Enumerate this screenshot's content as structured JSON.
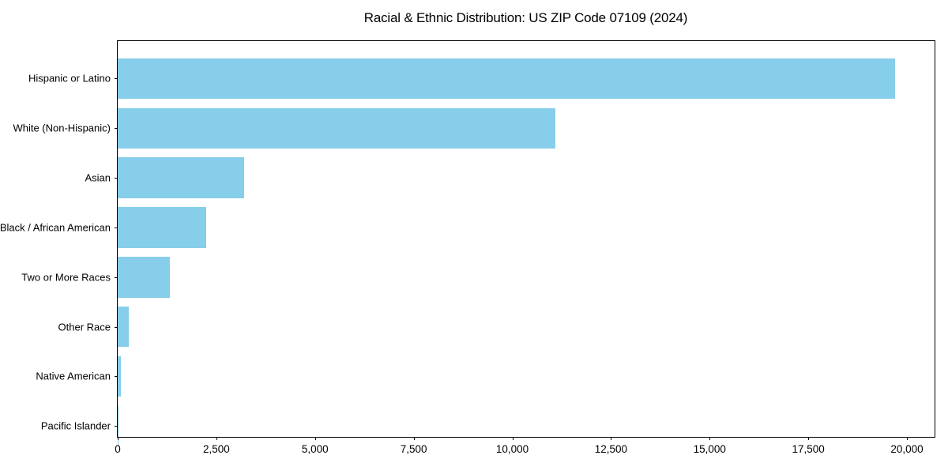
{
  "chart_data": {
    "type": "bar",
    "orientation": "horizontal",
    "title": "Racial & Ethnic Distribution: US ZIP Code 07109 (2024)",
    "categories": [
      "Hispanic or Latino",
      "White (Non-Hispanic)",
      "Asian",
      "Black / African American",
      "Two or More Races",
      "Other Race",
      "Native American",
      "Pacific Islander"
    ],
    "values": [
      19700,
      11100,
      3200,
      2250,
      1320,
      280,
      85,
      10
    ],
    "xlabel": "",
    "ylabel": "",
    "xlim": [
      0,
      20700
    ],
    "x_ticks": [
      0,
      2500,
      5000,
      7500,
      10000,
      12500,
      15000,
      17500,
      20000
    ],
    "x_tick_labels": [
      "0",
      "2,500",
      "5,000",
      "7,500",
      "10,000",
      "12,500",
      "15,000",
      "17,500",
      "20,000"
    ],
    "grid": false,
    "legend": false,
    "bar_color": "#87CEEB",
    "spine_color": "#000000",
    "background_color": "#FFFFFF"
  }
}
